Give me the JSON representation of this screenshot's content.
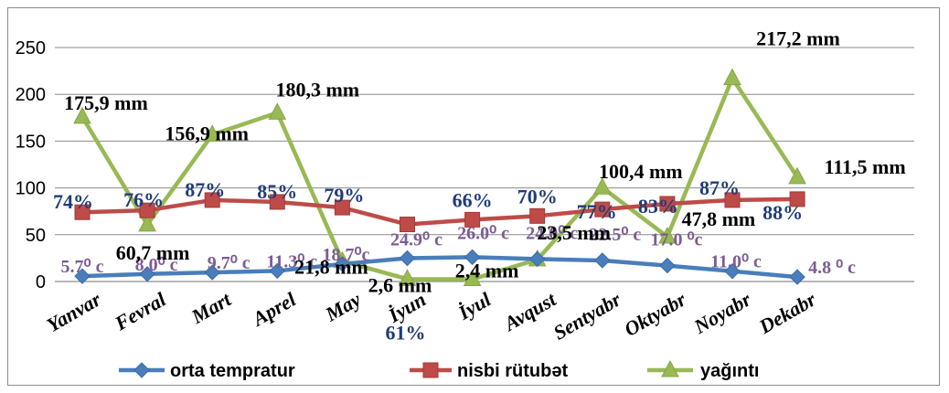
{
  "chart_data": {
    "type": "line",
    "categories": [
      "Yanvar",
      "Fevral",
      "Mart",
      "Aprel",
      "May",
      "İyun",
      "İyul",
      "Avqust",
      "Sentyabr",
      "Oktyabr",
      "Noyabr",
      "Dekabr"
    ],
    "ylim": [
      0,
      250
    ],
    "yticks": [
      "0",
      "50",
      "100",
      "150",
      "200",
      "250"
    ],
    "grid": true,
    "legend_position": "bottom",
    "series": [
      {
        "name": "orta tempratur",
        "color": "#4a7ebb",
        "marker": "diamond",
        "values": [
          5.7,
          8.0,
          9.7,
          11.3,
          18.7,
          24.9,
          26.0,
          24.0,
          22.5,
          17.0,
          11.0,
          4.8
        ],
        "labels": [
          "5.7⁰ c",
          "8.0⁰ c",
          "9.7⁰ c",
          "11.3⁰ c",
          "18.7⁰c",
          "24.9⁰ c",
          "26.0⁰ c",
          "24.0⁰ c",
          "22.5⁰ c",
          "17.0 ⁰c",
          "11.0⁰ c",
          "4.8 ⁰ c"
        ]
      },
      {
        "name": "nisbi rütubət",
        "color": "#be4b48",
        "marker": "square",
        "values": [
          74,
          76,
          87,
          85,
          79,
          61,
          66,
          70,
          77,
          83,
          87,
          88
        ],
        "labels": [
          "74%",
          "76%",
          "87%",
          "85%",
          "79%",
          "61%",
          "66%",
          "70%",
          "77%",
          "83%",
          "87%",
          "88%"
        ]
      },
      {
        "name": "yağıntı",
        "color": "#98b954",
        "marker": "triangle",
        "values": [
          175.9,
          60.7,
          156.9,
          180.3,
          21.8,
          2.6,
          2.4,
          23.5,
          100.4,
          47.8,
          217.2,
          111.5
        ],
        "labels": [
          "175,9 mm",
          "60,7 mm",
          "156,9 mm",
          "180,3 mm",
          "21,8 mm",
          "2,6 mm",
          "2,4 mm",
          "23,5 mm",
          "100,4 mm",
          "47,8 mm",
          "217,2 mm",
          "111,5 mm"
        ]
      }
    ]
  }
}
